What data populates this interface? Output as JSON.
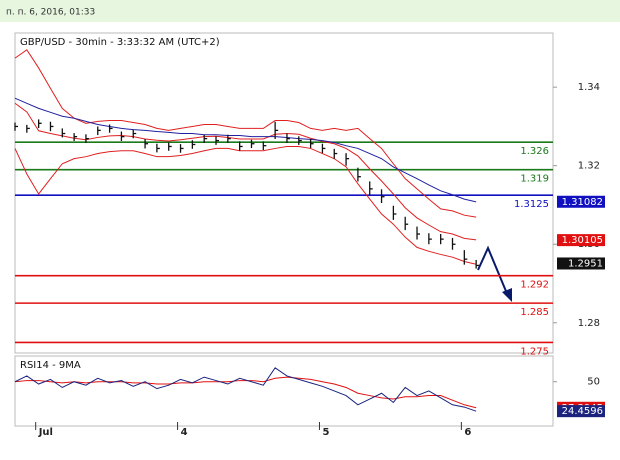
{
  "header": "п. п. 6, 2016, 01:33",
  "chart_data": [
    {
      "type": "ohlc",
      "title": "GBP/USD - 30min - 3:33:32 AM (UTC+2)",
      "x": [
        0,
        4,
        8,
        12,
        16,
        20,
        24,
        28,
        32,
        36,
        40,
        44,
        48,
        52,
        56,
        60,
        64,
        68,
        72,
        76,
        80,
        84,
        88,
        92,
        96,
        100,
        104,
        108,
        112,
        116,
        120,
        124,
        128,
        132,
        136,
        140,
        144,
        148,
        152,
        156
      ],
      "close": [
        1.33,
        1.3295,
        1.3308,
        1.33,
        1.3282,
        1.3274,
        1.3269,
        1.329,
        1.3295,
        1.3274,
        1.3282,
        1.3256,
        1.3244,
        1.3249,
        1.3244,
        1.3254,
        1.3269,
        1.3264,
        1.3269,
        1.3249,
        1.3256,
        1.3251,
        1.329,
        1.3269,
        1.3264,
        1.3256,
        1.3244,
        1.3231,
        1.3218,
        1.3172,
        1.3141,
        1.3121,
        1.3077,
        1.3051,
        1.3026,
        1.3013,
        1.3013,
        1.3,
        1.2962,
        1.2946
      ],
      "high": [
        1.331,
        1.3304,
        1.3318,
        1.3312,
        1.3295,
        1.3283,
        1.328,
        1.33,
        1.3305,
        1.3287,
        1.3292,
        1.3268,
        1.3256,
        1.3259,
        1.3255,
        1.3265,
        1.3279,
        1.3275,
        1.3279,
        1.3262,
        1.3266,
        1.3262,
        1.3312,
        1.3282,
        1.3275,
        1.3268,
        1.3256,
        1.3243,
        1.3232,
        1.3195,
        1.316,
        1.314,
        1.3098,
        1.307,
        1.3045,
        1.3028,
        1.3026,
        1.3016,
        1.2985,
        1.296
      ],
      "low": [
        1.3289,
        1.3284,
        1.3296,
        1.3288,
        1.3272,
        1.3263,
        1.3258,
        1.3278,
        1.3284,
        1.3263,
        1.327,
        1.3244,
        1.3234,
        1.3238,
        1.3233,
        1.3243,
        1.3258,
        1.3253,
        1.3258,
        1.3238,
        1.3245,
        1.324,
        1.3268,
        1.3258,
        1.3253,
        1.3245,
        1.3232,
        1.3218,
        1.32,
        1.316,
        1.3126,
        1.3105,
        1.3062,
        1.3036,
        1.3012,
        1.3,
        1.3,
        1.2986,
        1.2948,
        1.2938
      ],
      "color": "#111111",
      "series": [
        {
          "color": "#e02020",
          "values": [
            1.3474,
            1.3495,
            1.3449,
            1.3397,
            1.3346,
            1.3321,
            1.3308,
            1.3313,
            1.3315,
            1.3315,
            1.331,
            1.3305,
            1.3295,
            1.329,
            1.3295,
            1.33,
            1.3305,
            1.3305,
            1.33,
            1.3295,
            1.3295,
            1.3295,
            1.3315,
            1.3315,
            1.331,
            1.3295,
            1.329,
            1.3295,
            1.329,
            1.3295,
            1.3269,
            1.3244,
            1.3205,
            1.3167,
            1.3141,
            1.3115,
            1.309,
            1.3085,
            1.3074,
            1.3069
          ]
        },
        {
          "color": "#e02020",
          "values": [
            1.3359,
            1.3337,
            1.3289,
            1.3282,
            1.3276,
            1.327,
            1.3266,
            1.3272,
            1.3276,
            1.3277,
            1.3274,
            1.3268,
            1.3265,
            1.3263,
            1.3266,
            1.327,
            1.3274,
            1.3275,
            1.3272,
            1.3268,
            1.3268,
            1.3268,
            1.328,
            1.3282,
            1.328,
            1.327,
            1.3262,
            1.3256,
            1.3244,
            1.3225,
            1.3192,
            1.3161,
            1.3128,
            1.3093,
            1.3067,
            1.3049,
            1.3032,
            1.3026,
            1.3015,
            1.3011
          ]
        },
        {
          "color": "#e02020",
          "values": [
            1.3244,
            1.3179,
            1.3128,
            1.3167,
            1.3205,
            1.3218,
            1.3223,
            1.3231,
            1.3236,
            1.3238,
            1.3238,
            1.3231,
            1.3223,
            1.3223,
            1.3226,
            1.3231,
            1.3238,
            1.3244,
            1.3244,
            1.3238,
            1.3238,
            1.3238,
            1.3244,
            1.3249,
            1.3249,
            1.3244,
            1.3231,
            1.3218,
            1.3197,
            1.3154,
            1.3115,
            1.3077,
            1.3051,
            1.3018,
            1.2992,
            1.2982,
            1.2974,
            1.2967,
            1.2956,
            1.2949
          ]
        },
        {
          "color": "#2020a0",
          "values": [
            1.3372,
            1.3359,
            1.3346,
            1.3336,
            1.3326,
            1.3321,
            1.3313,
            1.3305,
            1.33,
            1.3295,
            1.3292,
            1.329,
            1.3287,
            1.3285,
            1.3282,
            1.3282,
            1.3279,
            1.3279,
            1.3277,
            1.3277,
            1.3274,
            1.3274,
            1.3274,
            1.3272,
            1.3269,
            1.3267,
            1.3264,
            1.3259,
            1.3251,
            1.3244,
            1.3231,
            1.3218,
            1.3197,
            1.3182,
            1.3167,
            1.3151,
            1.3136,
            1.3126,
            1.3115,
            1.3108
          ]
        }
      ],
      "levels": [
        {
          "value": 1.326,
          "color": "#1a7a1a"
        },
        {
          "value": 1.319,
          "color": "#1a7a1a"
        },
        {
          "value": 1.3125,
          "color": "#1010c0"
        },
        {
          "value": 1.292,
          "color": "#e01010"
        },
        {
          "value": 1.285,
          "color": "#e01010"
        },
        {
          "value": 1.275,
          "color": "#e01010"
        }
      ],
      "price_tags": [
        {
          "value": 1.31082,
          "color": "#1010c0"
        },
        {
          "value": 1.30105,
          "color": "#e01010"
        },
        {
          "value": 1.2951,
          "color": "#111111"
        }
      ],
      "xlim": [
        0,
        182
      ],
      "ylim": [
        1.2723,
        1.3538
      ],
      "yticks": [
        1.28,
        {
          "value": 1.3,
          "label": "1.30"
        },
        1.32,
        1.34
      ]
    },
    {
      "type": "line",
      "title": "RSI14 - 9MA",
      "x": [
        0,
        4,
        8,
        12,
        16,
        20,
        24,
        28,
        32,
        36,
        40,
        44,
        48,
        52,
        56,
        60,
        64,
        68,
        72,
        76,
        80,
        84,
        88,
        92,
        96,
        100,
        104,
        108,
        112,
        116,
        120,
        124,
        128,
        132,
        136,
        140,
        144,
        148,
        152,
        156
      ],
      "series": [
        {
          "color": "#e01010",
          "values": [
            50,
            51,
            51,
            50,
            49,
            50,
            49,
            50,
            50,
            50,
            49,
            49,
            48,
            48,
            49,
            49,
            50,
            50,
            50,
            51,
            51,
            50,
            53,
            54,
            53,
            52,
            50,
            48,
            45,
            40,
            38,
            36,
            35,
            37,
            37,
            38,
            38,
            34,
            30,
            27.3945
          ]
        },
        {
          "color": "#1a237e",
          "values": [
            50,
            55,
            48,
            52,
            45,
            50,
            47,
            53,
            49,
            51,
            46,
            50,
            44,
            47,
            52,
            49,
            54,
            51,
            48,
            53,
            50,
            47,
            62,
            55,
            52,
            49,
            46,
            42,
            38,
            30,
            35,
            40,
            32,
            45,
            38,
            42,
            36,
            30,
            28,
            24.4596
          ]
        }
      ],
      "price_tags": [
        {
          "value": 27.3945,
          "color": "#e01010"
        },
        {
          "value": 24.4596,
          "color": "#1a237e"
        }
      ],
      "xlim": [
        0,
        182
      ],
      "ylim": [
        11.6,
        72.3
      ],
      "yticks": [
        50
      ],
      "xticks": [
        {
          "value": 7,
          "label": "Jul"
        },
        {
          "value": 55,
          "label": "4"
        },
        {
          "value": 103,
          "label": "5"
        },
        {
          "value": 151,
          "label": "6"
        }
      ]
    }
  ]
}
